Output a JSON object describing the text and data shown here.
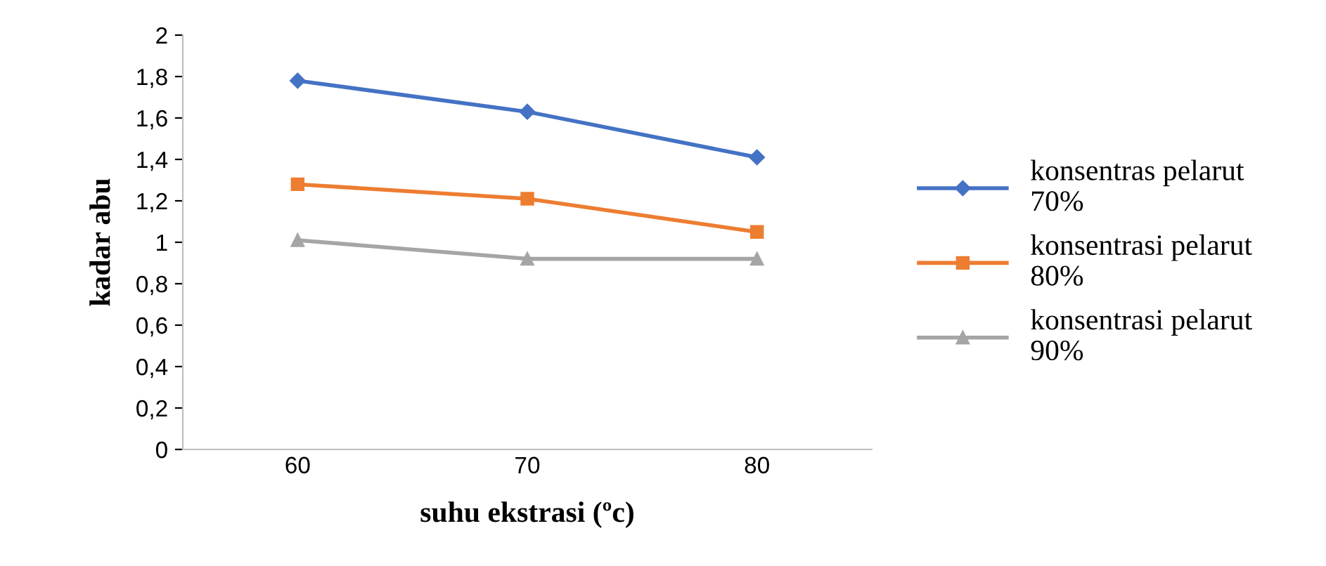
{
  "chart_data": {
    "type": "line",
    "xlabel": "suhu ekstrasi (ºc)",
    "ylabel": "kadar abu",
    "categories": [
      "60",
      "70",
      "80"
    ],
    "series": [
      {
        "name": "konsentras pelarut 70%",
        "color": "#4472c4",
        "values": [
          1.78,
          1.63,
          1.41
        ],
        "marker": "diamond"
      },
      {
        "name": "konsentrasi pelarut 80%",
        "color": "#ed7d31",
        "values": [
          1.28,
          1.21,
          1.05
        ],
        "marker": "square"
      },
      {
        "name": "konsentrasi pelarut 90%",
        "color": "#a5a5a5",
        "values": [
          1.01,
          0.92,
          0.92
        ],
        "marker": "triangle"
      }
    ],
    "ylim": [
      0,
      2
    ],
    "yticks": [
      0,
      {
        "value": 0.2,
        "label": "0,2"
      },
      {
        "value": 0.4,
        "label": "0,4"
      },
      {
        "value": 0.6,
        "label": "0,6"
      },
      {
        "value": 0.8,
        "label": "0,8"
      },
      1,
      {
        "value": 1.2,
        "label": "1,2"
      },
      {
        "value": 1.4,
        "label": "1,4"
      },
      {
        "value": 1.6,
        "label": "1,6"
      },
      {
        "value": 1.8,
        "label": "1,8"
      },
      2
    ],
    "grid": false,
    "legend": "right",
    "line_style": "solid"
  }
}
